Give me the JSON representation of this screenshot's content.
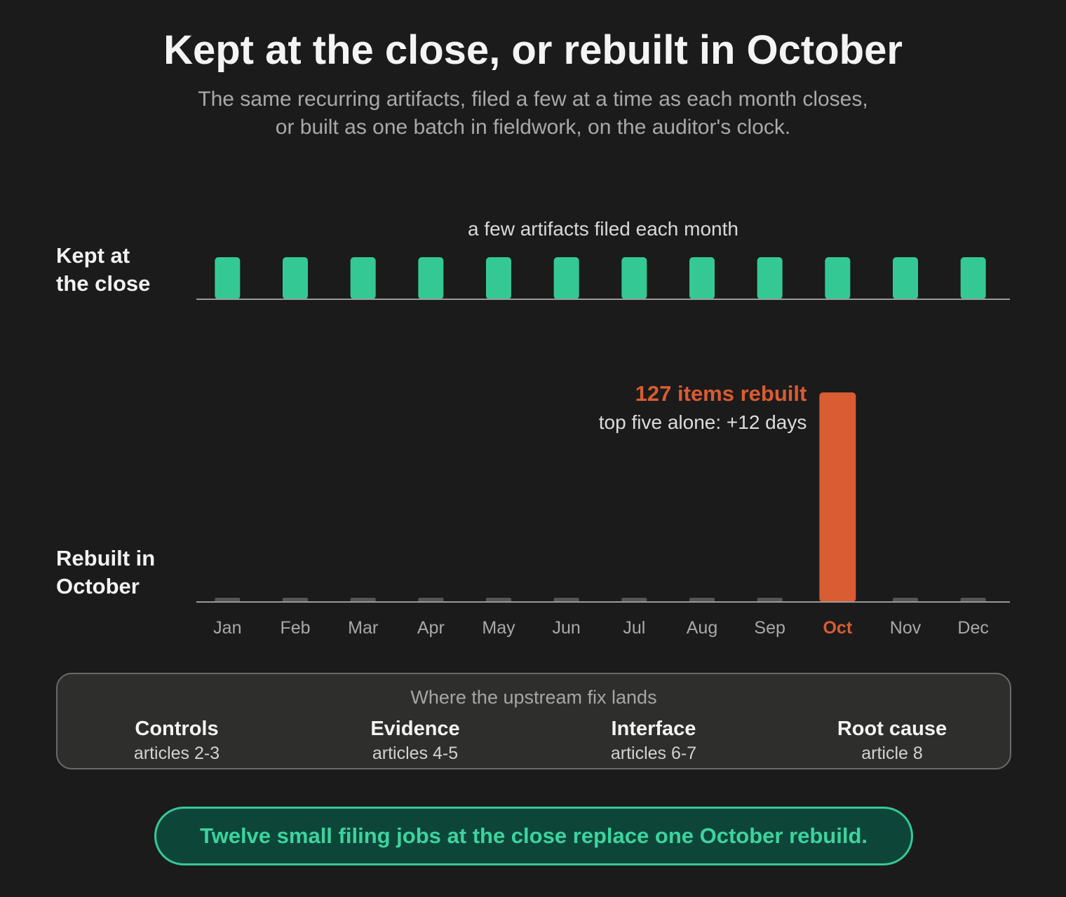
{
  "title": "Kept at the close, or rebuilt in October",
  "subtitle_lines": [
    "The same recurring artifacts, filed a few at a time as each month closes,",
    "or built as one batch in fieldwork, on the auditor's clock."
  ],
  "colors": {
    "kept": "#34c994",
    "rebuilt": "#d95c33",
    "baseline_stub": "#555555",
    "axis": "#9a9a9a"
  },
  "chart_data": [
    {
      "type": "bar",
      "row_label_lines": [
        "Kept at",
        "the close"
      ],
      "annotation": "a few artifacts filed each month",
      "categories": [
        "Jan",
        "Feb",
        "Mar",
        "Apr",
        "May",
        "Jun",
        "Jul",
        "Aug",
        "Sep",
        "Oct",
        "Nov",
        "Dec"
      ],
      "values": [
        1,
        1,
        1,
        1,
        1,
        1,
        1,
        1,
        1,
        1,
        1,
        1
      ],
      "ylim": [
        0,
        1
      ]
    },
    {
      "type": "bar",
      "row_label_lines": [
        "Rebuilt in",
        "October"
      ],
      "annotation_lines": [
        "127 items rebuilt",
        "top five alone: +12 days"
      ],
      "categories": [
        "Jan",
        "Feb",
        "Mar",
        "Apr",
        "May",
        "Jun",
        "Jul",
        "Aug",
        "Sep",
        "Oct",
        "Nov",
        "Dec"
      ],
      "values": [
        0,
        0,
        0,
        0,
        0,
        0,
        0,
        0,
        0,
        127,
        0,
        0
      ],
      "highlight": "Oct",
      "ylim": [
        0,
        127
      ]
    }
  ],
  "fix_panel": {
    "title": "Where the upstream fix lands",
    "items": [
      {
        "name": "Controls",
        "ref": "articles 2-3"
      },
      {
        "name": "Evidence",
        "ref": "articles 4-5"
      },
      {
        "name": "Interface",
        "ref": "articles 6-7"
      },
      {
        "name": "Root cause",
        "ref": "article 8"
      }
    ]
  },
  "callout": "Twelve small filing jobs at the close replace one October rebuild."
}
